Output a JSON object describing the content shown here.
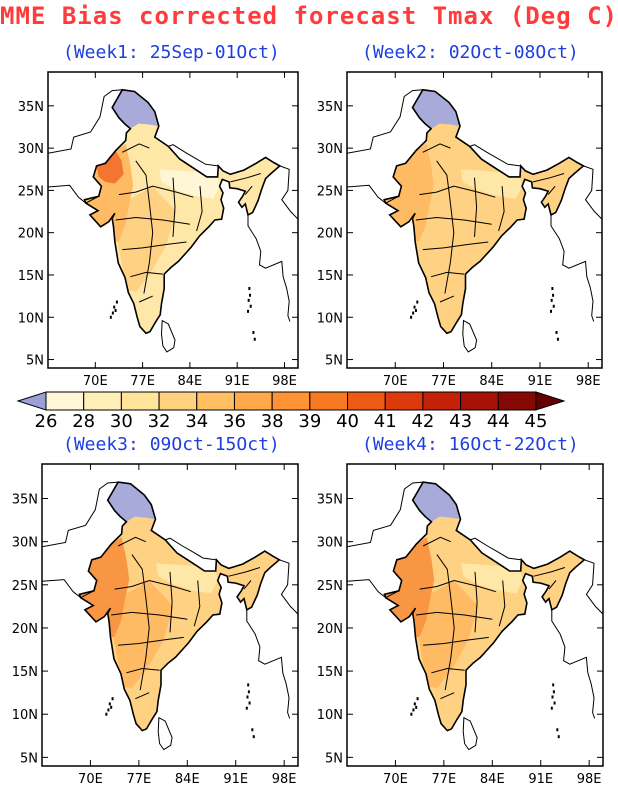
{
  "title": "MME Bias corrected forecast Tmax (Deg C)",
  "panels": [
    {
      "label": "(Week1: 25Sep-01Oct)"
    },
    {
      "label": "(Week2: 02Oct-08Oct)"
    },
    {
      "label": "(Week3: 09Oct-15Oct)"
    },
    {
      "label": "(Week4: 16Oct-22Oct)"
    }
  ],
  "axes": {
    "x_ticks": [
      "70E",
      "77E",
      "84E",
      "91E",
      "98E"
    ],
    "y_ticks": [
      "35N",
      "30N",
      "25N",
      "20N",
      "15N",
      "10N",
      "5N"
    ]
  },
  "colorbar": {
    "levels": [
      "26",
      "28",
      "30",
      "32",
      "34",
      "36",
      "38",
      "39",
      "40",
      "41",
      "42",
      "43",
      "44",
      "45"
    ],
    "colors": [
      "#9a9fd6",
      "#fff7d8",
      "#fff0b8",
      "#ffe49a",
      "#ffd27d",
      "#ffbf62",
      "#ffa94a",
      "#ff9235",
      "#f77a22",
      "#ec5a14",
      "#dc3a0c",
      "#c42208",
      "#a61206",
      "#860804",
      "#650000"
    ]
  },
  "map_colors": {
    "water": "#ffffff",
    "cold": "#a8abd9",
    "pale": "#fff6d6",
    "light": "#ffe7a8",
    "mid": "#ffd182",
    "warm": "#ffbb63",
    "hot": "#f89643",
    "hottest": "#f27530"
  }
}
